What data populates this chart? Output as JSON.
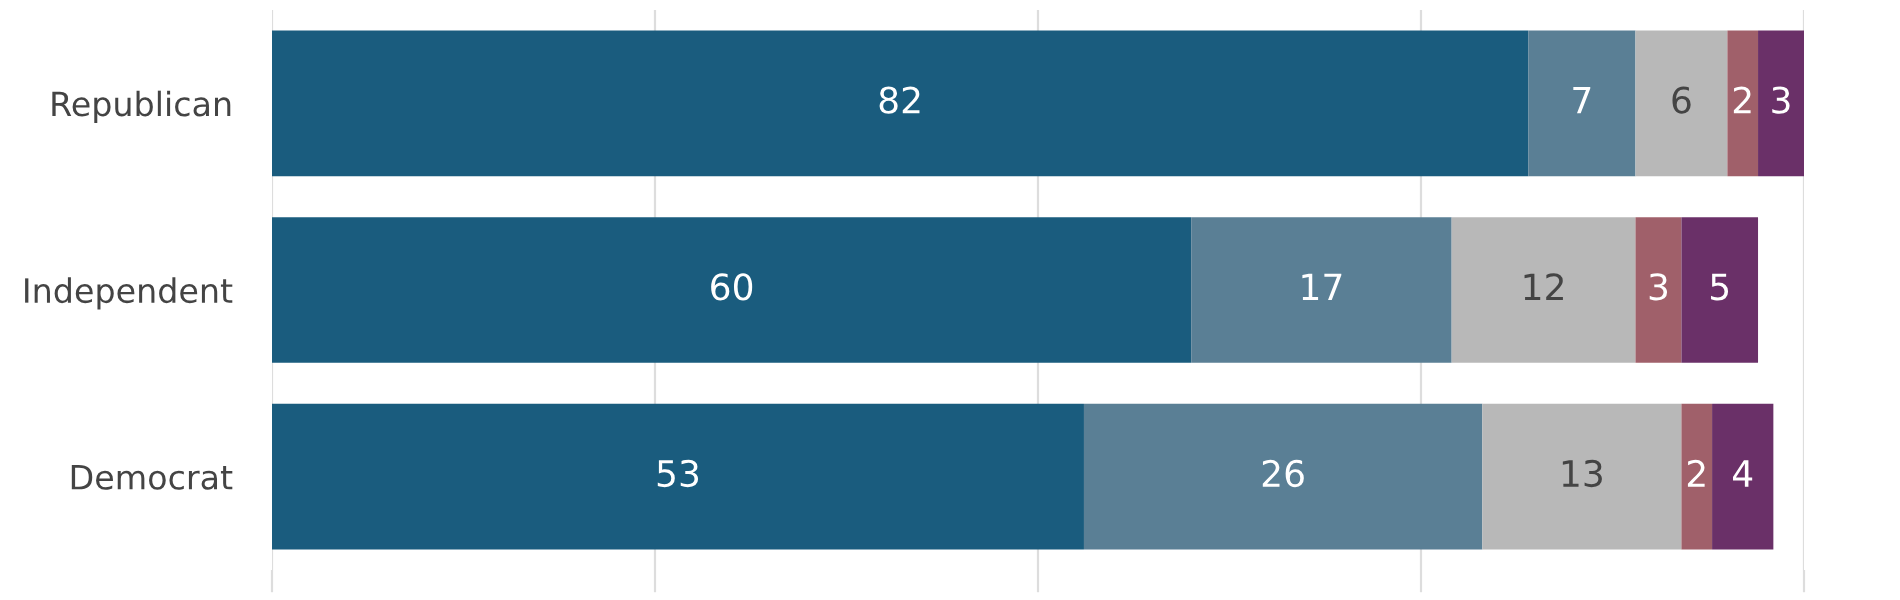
{
  "chart_data": {
    "type": "bar",
    "orientation": "horizontal",
    "stacked": true,
    "data_labels": true,
    "grid": "x",
    "tick_labels": "y",
    "categories": [
      "Republican",
      "Independent",
      "Democrat"
    ],
    "xlim": [
      0,
      100
    ],
    "xticks": [
      {
        "value": 0,
        "label": null
      },
      {
        "value": 25,
        "label": null
      },
      {
        "value": 50,
        "label": null
      },
      {
        "value": 75,
        "label": null
      },
      {
        "value": 100,
        "label": null
      }
    ],
    "series": [
      {
        "color": "#1a5c7e",
        "values": [
          82,
          60,
          53
        ]
      },
      {
        "color": "#5a7f95",
        "values": [
          7,
          17,
          26
        ]
      },
      {
        "color": "#b8b8b8",
        "values": [
          6,
          12,
          13
        ]
      },
      {
        "color": "#a0606a",
        "values": [
          2,
          3,
          2
        ]
      },
      {
        "color": "#6a3068",
        "values": [
          3,
          5,
          4
        ]
      }
    ]
  }
}
